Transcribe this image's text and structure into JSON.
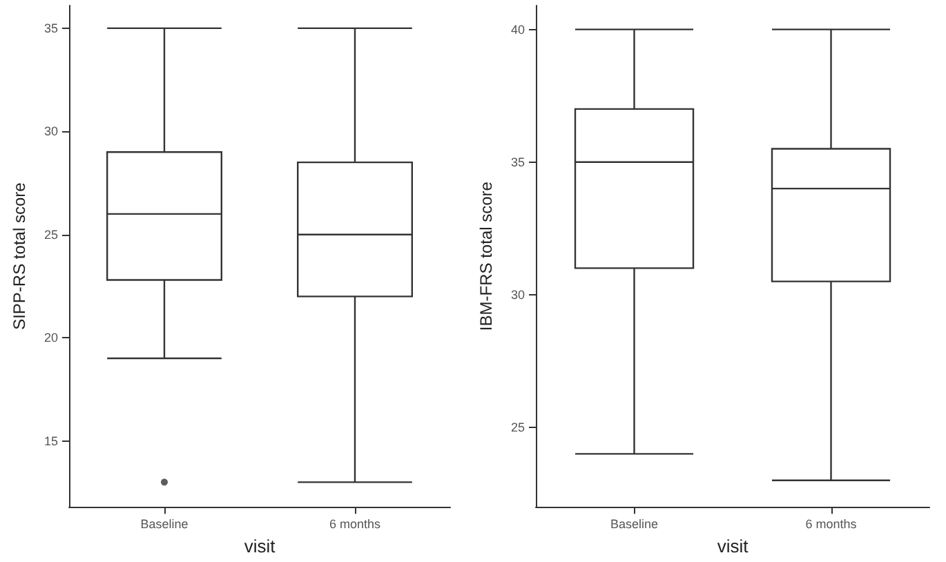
{
  "chart_data": [
    {
      "type": "box",
      "xlabel": "visit",
      "ylabel": "SIPP-RS total score",
      "categories": [
        "Baseline",
        "6 months"
      ],
      "color": "#333333",
      "ylim": [
        11.8,
        36.1
      ],
      "yticks": [
        15,
        20,
        25,
        30,
        35
      ],
      "grid": false,
      "boxes": [
        {
          "low": 19,
          "q1": 22.8,
          "median": 26,
          "q3": 29,
          "high": 35,
          "outliers": [
            13
          ]
        },
        {
          "low": 13,
          "q1": 22,
          "median": 25,
          "q3": 28.5,
          "high": 35
        }
      ]
    },
    {
      "type": "box",
      "xlabel": "visit",
      "ylabel": "IBM-FRS total score",
      "categories": [
        "Baseline",
        "6 months"
      ],
      "color": "#333333",
      "ylim": [
        22,
        40.9
      ],
      "yticks": [
        25,
        30,
        35,
        40
      ],
      "grid": false,
      "boxes": [
        {
          "low": 24,
          "q1": 31,
          "median": 35,
          "q3": 37,
          "high": 40
        },
        {
          "low": 23,
          "q1": 30.5,
          "median": 34,
          "q3": 35.5,
          "high": 40
        }
      ]
    }
  ]
}
